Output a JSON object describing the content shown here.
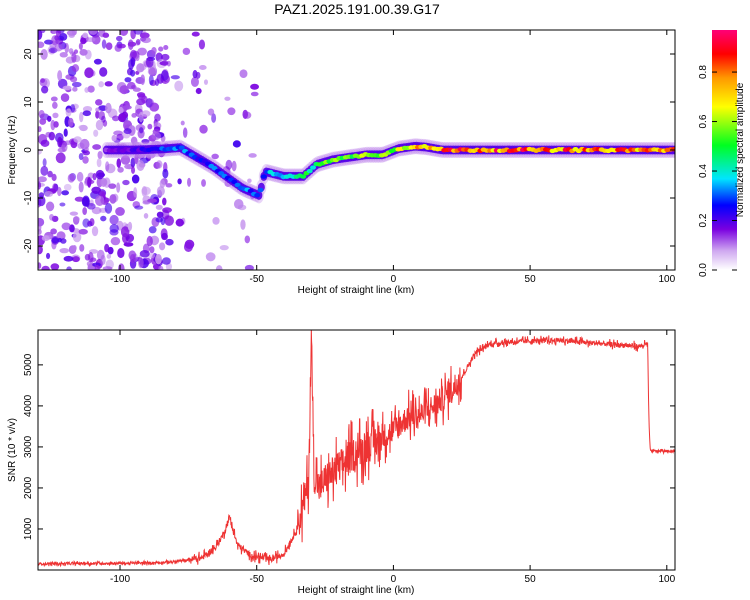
{
  "title": "PAZ1.2025.191.00.39.G17",
  "chart_data": [
    {
      "type": "heatmap",
      "name": "spectrogram",
      "xlabel": "Height of straight line (km)",
      "ylabel": "Frequency (Hz)",
      "xlim": [
        -130,
        103
      ],
      "ylim": [
        -25,
        25
      ],
      "xticks": [
        -100,
        -50,
        0,
        50,
        100
      ],
      "yticks": [
        -20,
        -10,
        0,
        10,
        20
      ],
      "colorbar": {
        "label": "Normalized spectral amplitude",
        "range": [
          0.0,
          0.97
        ],
        "ticks": [
          0.0,
          0.2,
          0.4,
          0.6,
          0.8
        ],
        "colormap": "white-purple-blue-cyan-green-yellow-orange-red-magenta"
      },
      "ridge": {
        "x": [
          -105,
          -95,
          -85,
          -78,
          -72,
          -66,
          -60,
          -55,
          -49,
          -47,
          -40,
          -33,
          -28,
          -22,
          -16,
          -10,
          -4,
          2,
          8,
          12,
          18,
          25,
          103
        ],
        "y": [
          0.0,
          0.0,
          0.2,
          0.5,
          -1.5,
          -3.5,
          -6.0,
          -8.0,
          -9.5,
          -4.5,
          -5.5,
          -5.5,
          -3.0,
          -2.0,
          -1.5,
          -1.0,
          -1.0,
          0.3,
          0.8,
          0.6,
          0.0,
          0.0,
          0.0
        ],
        "amplitude": [
          0.15,
          0.2,
          0.3,
          0.35,
          0.3,
          0.32,
          0.3,
          0.35,
          0.3,
          0.35,
          0.45,
          0.5,
          0.55,
          0.6,
          0.62,
          0.65,
          0.6,
          0.65,
          0.8,
          0.85,
          0.9,
          0.9,
          0.85
        ]
      },
      "noise_region": {
        "x": [
          -130,
          -50
        ],
        "amplitude": 0.08
      }
    },
    {
      "type": "line",
      "name": "snr",
      "xlabel": "Height of straight line (km)",
      "ylabel": "SNR (10 * v/v)",
      "xlim": [
        -130,
        103
      ],
      "ylim": [
        0,
        5850
      ],
      "xticks": [
        -100,
        -50,
        0,
        50,
        100
      ],
      "yticks": [
        1000,
        2000,
        3000,
        4000,
        5000
      ],
      "color": "#ee3333",
      "series": [
        {
          "x": [
            -130,
            -90,
            -80,
            -70,
            -65,
            -62,
            -60,
            -57,
            -52,
            -45,
            -40,
            -36,
            -33,
            -31,
            -30,
            -29,
            -27,
            -25,
            -20,
            -15,
            -10,
            -5,
            0,
            5,
            10,
            15,
            20,
            25,
            30,
            35,
            40,
            50,
            60,
            70,
            80,
            90,
            93,
            93.5,
            94,
            100,
            103
          ],
          "y": [
            150,
            170,
            200,
            300,
            550,
            900,
            1300,
            600,
            350,
            250,
            400,
            900,
            1500,
            2300,
            5800,
            2300,
            2000,
            2200,
            2500,
            2800,
            3000,
            3200,
            3400,
            3700,
            3800,
            4000,
            4300,
            4700,
            5300,
            5500,
            5550,
            5580,
            5600,
            5550,
            5500,
            5450,
            5500,
            3500,
            2900,
            2900,
            2900
          ]
        }
      ]
    }
  ]
}
